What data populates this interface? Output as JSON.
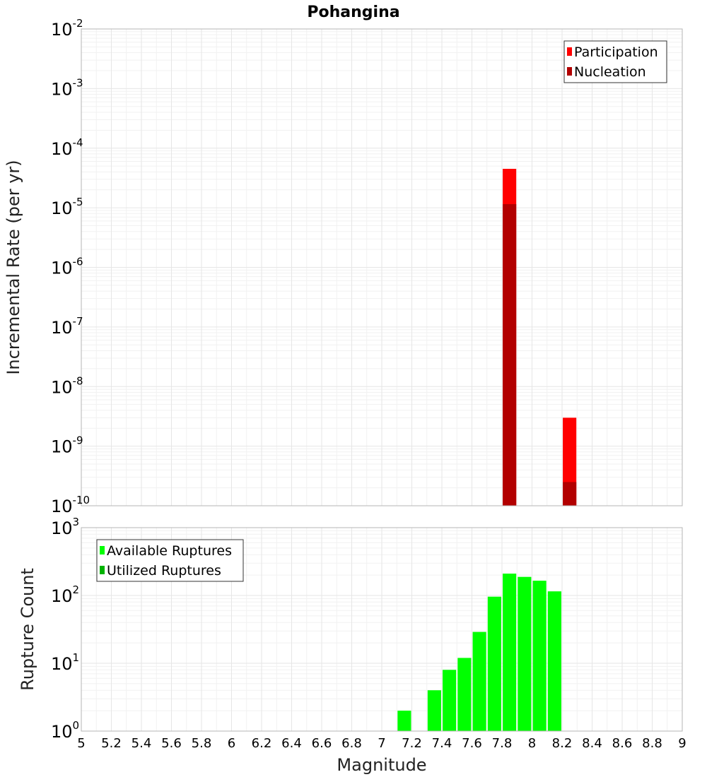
{
  "chart_data": [
    {
      "type": "bar",
      "title": "Pohangina",
      "ylabel": "Incremental Rate (per yr)",
      "xlabel": "",
      "yscale": "log",
      "ylim_exp": [
        -10,
        -2
      ],
      "xlim": [
        5,
        9
      ],
      "bar_width": 0.09,
      "grid": true,
      "legend_position": "top-right",
      "series": [
        {
          "name": "Participation",
          "color": "#ff0000",
          "points": [
            {
              "x": 7.85,
              "y": 4.5e-05
            },
            {
              "x": 8.25,
              "y": 3e-09
            }
          ]
        },
        {
          "name": "Nucleation",
          "color": "#b20000",
          "points": [
            {
              "x": 7.85,
              "y": 1.15e-05
            },
            {
              "x": 8.25,
              "y": 2.5e-10
            }
          ]
        }
      ]
    },
    {
      "type": "bar",
      "title": "",
      "ylabel": "Rupture Count",
      "xlabel": "Magnitude",
      "yscale": "log",
      "ylim_exp": [
        0,
        3
      ],
      "xlim": [
        5,
        9
      ],
      "bar_width": 0.09,
      "grid": true,
      "legend_position": "top-left",
      "x_ticks": [
        "5",
        "5.2",
        "5.4",
        "5.6",
        "5.8",
        "6",
        "6.2",
        "6.4",
        "6.6",
        "6.8",
        "7",
        "7.2",
        "7.4",
        "7.6",
        "7.8",
        "8",
        "8.2",
        "8.4",
        "8.6",
        "8.8",
        "9"
      ],
      "series": [
        {
          "name": "Available Ruptures",
          "color": "#00ff00",
          "points": [
            {
              "x": 7.15,
              "y": 2
            },
            {
              "x": 7.25,
              "y": 1
            },
            {
              "x": 7.35,
              "y": 4
            },
            {
              "x": 7.45,
              "y": 8
            },
            {
              "x": 7.55,
              "y": 12
            },
            {
              "x": 7.65,
              "y": 29
            },
            {
              "x": 7.75,
              "y": 96
            },
            {
              "x": 7.85,
              "y": 210
            },
            {
              "x": 7.95,
              "y": 188
            },
            {
              "x": 8.05,
              "y": 165
            },
            {
              "x": 8.15,
              "y": 115
            },
            {
              "x": 8.25,
              "y": 1
            }
          ]
        },
        {
          "name": "Utilized Ruptures",
          "color": "#00b300",
          "points": [
            {
              "x": 7.85,
              "y": 1
            },
            {
              "x": 8.25,
              "y": 1
            }
          ]
        }
      ]
    }
  ]
}
